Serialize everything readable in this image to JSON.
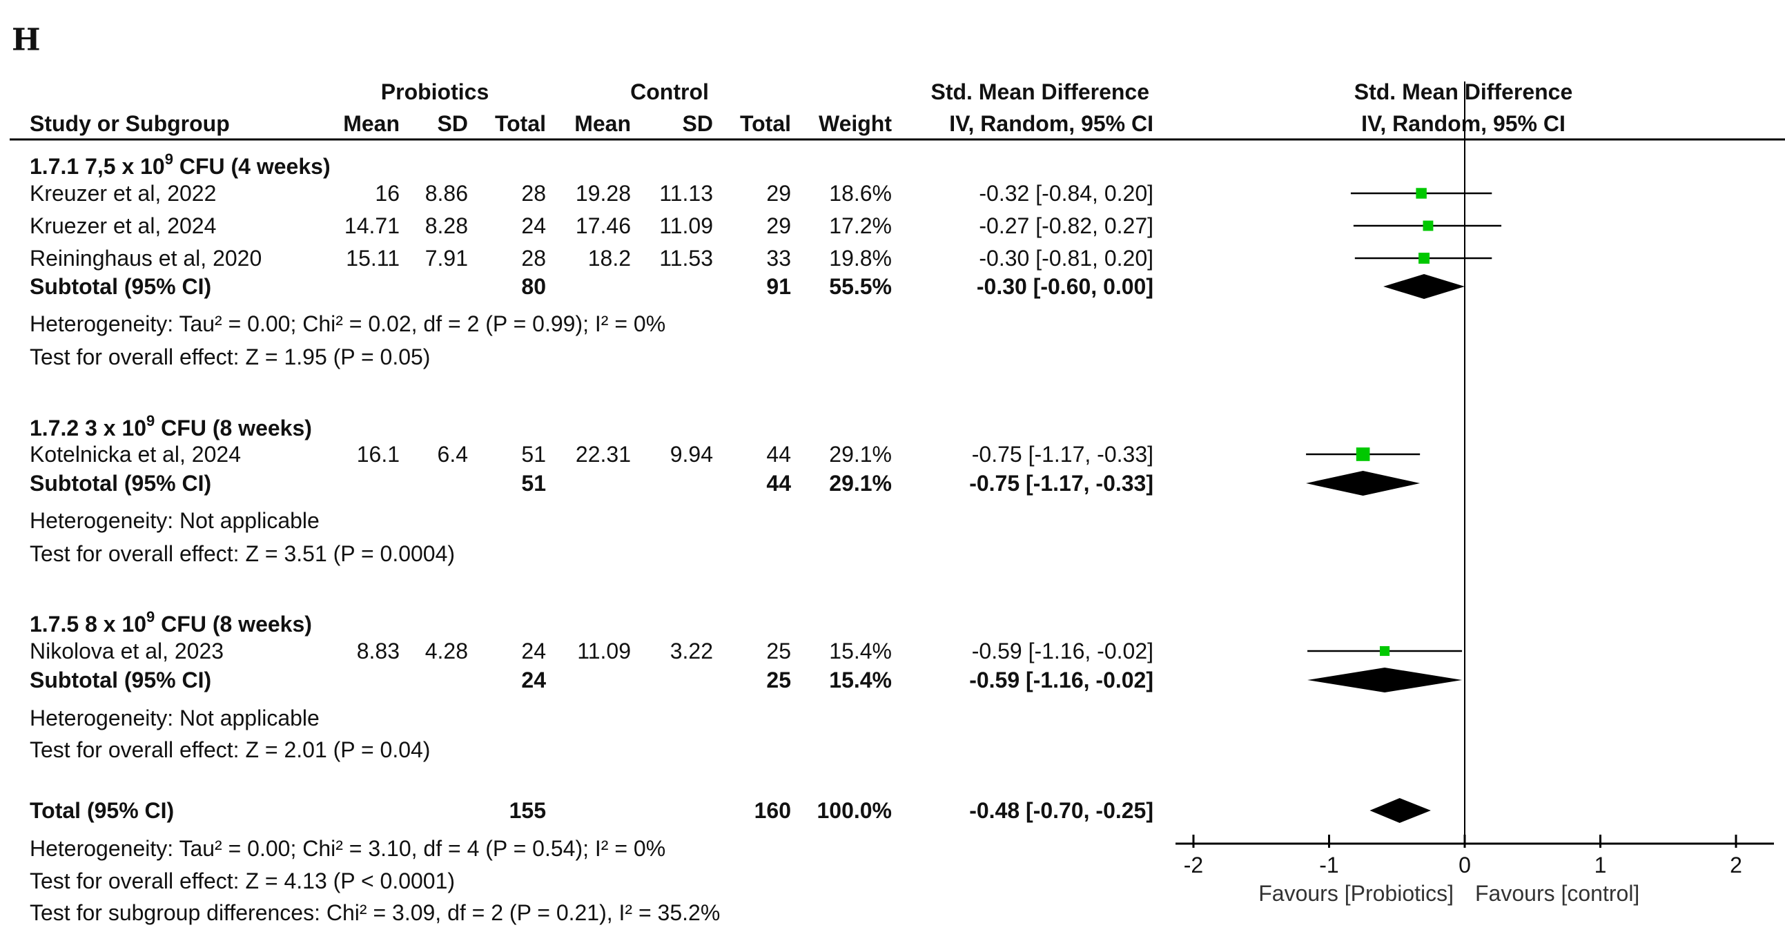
{
  "panel_label": "H",
  "header": {
    "group1": "Probiotics",
    "group2": "Control",
    "effect_title": "Std. Mean Difference",
    "effect_method": "IV, Random, 95% CI",
    "plot_title": "Std. Mean Difference",
    "plot_method": "IV, Random, 95% CI",
    "columns": [
      "Study or Subgroup",
      "Mean",
      "SD",
      "Total",
      "Mean",
      "SD",
      "Total",
      "Weight"
    ]
  },
  "chart_data": {
    "type": "forest",
    "xlim": [
      -2,
      2
    ],
    "ticks": [
      "-2",
      "-1",
      "0",
      "1",
      "2"
    ],
    "tick_values": [
      -2,
      -1,
      0,
      1,
      2
    ],
    "xlabel_left": "Favours [Probiotics]",
    "xlabel_right": "Favours [control]",
    "marker_color": "#00c800",
    "subgroups": [
      {
        "title_pre": "1.7.1 7,5 x 10",
        "title_sup": "9",
        "title_post": " CFU (4 weeks)",
        "studies": [
          {
            "name": "Kreuzer et al, 2022",
            "e_mean": "16",
            "e_sd": "8.86",
            "e_n": "28",
            "c_mean": "19.28",
            "c_sd": "11.13",
            "c_n": "29",
            "weight": "18.6%",
            "ci_text": "-0.32 [-0.84, 0.20]",
            "est": -0.32,
            "lo": -0.84,
            "hi": 0.2,
            "w": 18.6
          },
          {
            "name": "Kruezer et al, 2024",
            "e_mean": "14.71",
            "e_sd": "8.28",
            "e_n": "24",
            "c_mean": "17.46",
            "c_sd": "11.09",
            "c_n": "29",
            "weight": "17.2%",
            "ci_text": "-0.27 [-0.82, 0.27]",
            "est": -0.27,
            "lo": -0.82,
            "hi": 0.27,
            "w": 17.2
          },
          {
            "name": "Reininghaus et al, 2020",
            "e_mean": "15.11",
            "e_sd": "7.91",
            "e_n": "28",
            "c_mean": "18.2",
            "c_sd": "11.53",
            "c_n": "33",
            "weight": "19.8%",
            "ci_text": "-0.30 [-0.81, 0.20]",
            "est": -0.3,
            "lo": -0.81,
            "hi": 0.2,
            "w": 19.8
          }
        ],
        "subtotal": {
          "label": "Subtotal (95% CI)",
          "e_n": "80",
          "c_n": "91",
          "weight": "55.5%",
          "ci_text": "-0.30 [-0.60, 0.00]",
          "est": -0.3,
          "lo": -0.6,
          "hi": 0.0
        },
        "heterogeneity": "Heterogeneity: Tau² = 0.00; Chi² = 0.02, df = 2 (P = 0.99); I² = 0%",
        "overall": "Test for overall effect: Z = 1.95 (P = 0.05)"
      },
      {
        "title_pre": "1.7.2 3 x 10",
        "title_sup": "9",
        "title_post": " CFU (8 weeks)",
        "studies": [
          {
            "name": "Kotelnicka et al, 2024",
            "e_mean": "16.1",
            "e_sd": "6.4",
            "e_n": "51",
            "c_mean": "22.31",
            "c_sd": "9.94",
            "c_n": "44",
            "weight": "29.1%",
            "ci_text": "-0.75 [-1.17, -0.33]",
            "est": -0.75,
            "lo": -1.17,
            "hi": -0.33,
            "w": 29.1
          }
        ],
        "subtotal": {
          "label": "Subtotal (95% CI)",
          "e_n": "51",
          "c_n": "44",
          "weight": "29.1%",
          "ci_text": "-0.75 [-1.17, -0.33]",
          "est": -0.75,
          "lo": -1.17,
          "hi": -0.33
        },
        "heterogeneity": "Heterogeneity: Not applicable",
        "overall": "Test for overall effect: Z = 3.51 (P = 0.0004)"
      },
      {
        "title_pre": "1.7.5 8 x 10",
        "title_sup": "9",
        "title_post": " CFU (8 weeks)",
        "studies": [
          {
            "name": "Nikolova et al, 2023",
            "e_mean": "8.83",
            "e_sd": "4.28",
            "e_n": "24",
            "c_mean": "11.09",
            "c_sd": "3.22",
            "c_n": "25",
            "weight": "15.4%",
            "ci_text": "-0.59 [-1.16, -0.02]",
            "est": -0.59,
            "lo": -1.16,
            "hi": -0.02,
            "w": 15.4
          }
        ],
        "subtotal": {
          "label": "Subtotal (95% CI)",
          "e_n": "24",
          "c_n": "25",
          "weight": "15.4%",
          "ci_text": "-0.59 [-1.16, -0.02]",
          "est": -0.59,
          "lo": -1.16,
          "hi": -0.02
        },
        "heterogeneity": "Heterogeneity: Not applicable",
        "overall": "Test for overall effect: Z = 2.01 (P = 0.04)"
      }
    ],
    "total": {
      "label": "Total (95% CI)",
      "e_n": "155",
      "c_n": "160",
      "weight": "100.0%",
      "ci_text": "-0.48 [-0.70, -0.25]",
      "est": -0.48,
      "lo": -0.7,
      "hi": -0.25
    },
    "footer": [
      "Heterogeneity: Tau² = 0.00; Chi² = 3.10, df = 4 (P = 0.54); I² = 0%",
      "Test for overall effect: Z = 4.13 (P < 0.0001)",
      "Test for subgroup differences: Chi² = 3.09, df = 2 (P = 0.21), I² = 35.2%"
    ]
  }
}
